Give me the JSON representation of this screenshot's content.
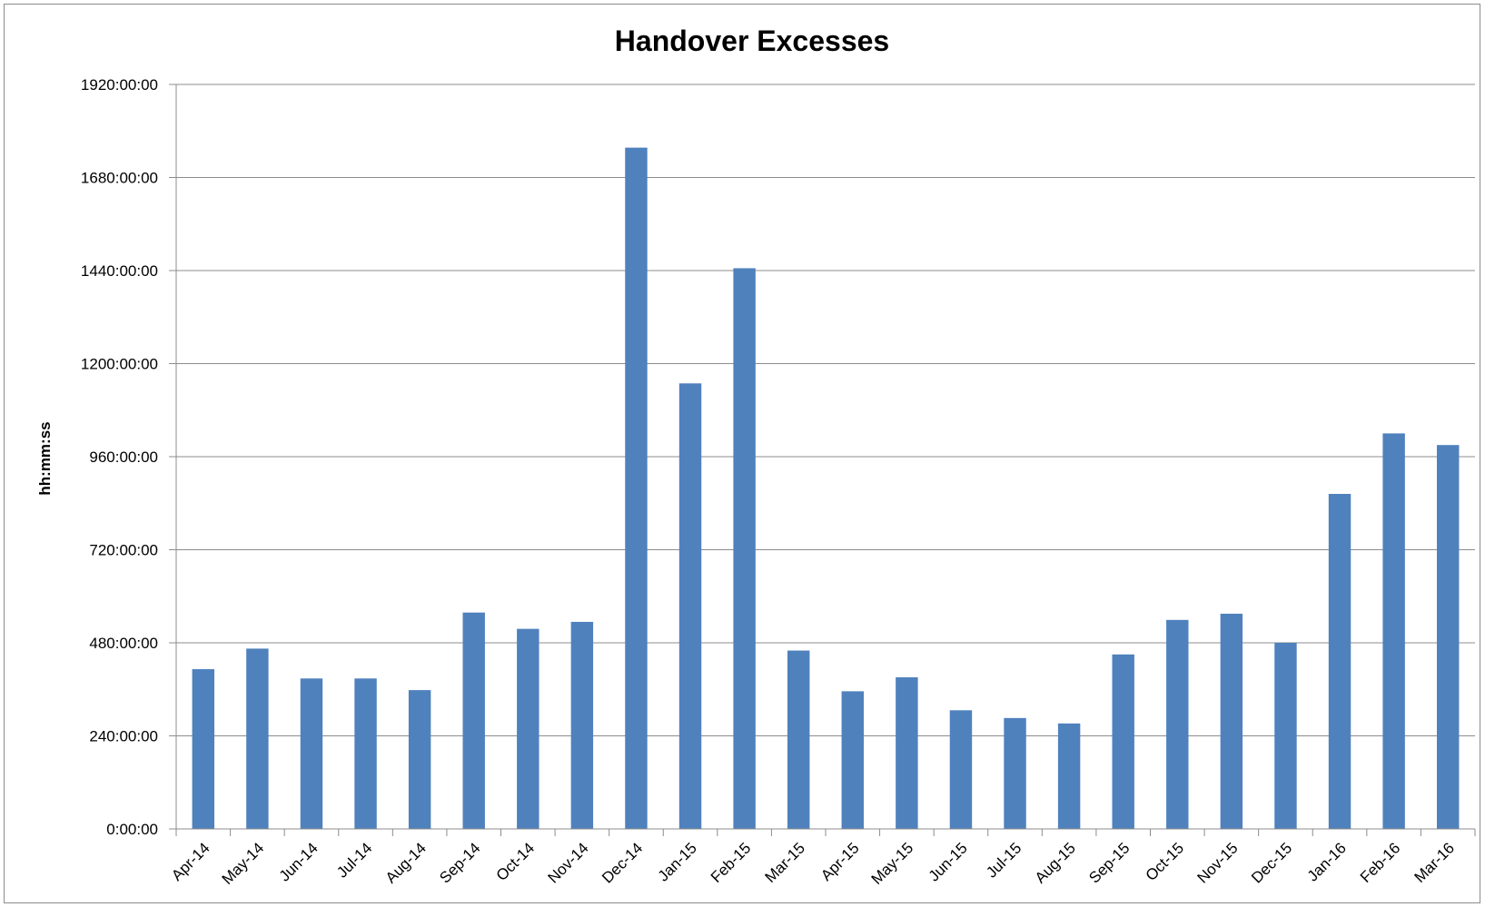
{
  "chart_data": {
    "type": "bar",
    "title": "Handover Excesses",
    "xlabel": "",
    "ylabel": "hh:mm:ss",
    "ylim": [
      0,
      1920
    ],
    "y_unit": "hours",
    "yticks": [
      0,
      240,
      480,
      720,
      960,
      1200,
      1440,
      1680,
      1920
    ],
    "ytick_labels": [
      "0:00:00",
      "240:00:00",
      "480:00:00",
      "720:00:00",
      "960:00:00",
      "1200:00:00",
      "1440:00:00",
      "1680:00:00",
      "1920:00:00"
    ],
    "grid": true,
    "legend": "none",
    "bar_color": "#4f81bd",
    "categories": [
      "Apr-14",
      "May-14",
      "Jun-14",
      "Jul-14",
      "Aug-14",
      "Sep-14",
      "Oct-14",
      "Nov-14",
      "Dec-14",
      "Jan-15",
      "Feb-15",
      "Mar-15",
      "Apr-15",
      "May-15",
      "Jun-15",
      "Jul-15",
      "Aug-15",
      "Sep-15",
      "Oct-15",
      "Nov-15",
      "Dec-15",
      "Jan-16",
      "Feb-16",
      "Mar-16"
    ],
    "values": [
      412,
      465,
      388,
      388,
      358,
      558,
      516,
      534,
      1757,
      1149,
      1446,
      460,
      355,
      391,
      306,
      286,
      272,
      450,
      539,
      555,
      480,
      864,
      1020,
      990
    ]
  }
}
